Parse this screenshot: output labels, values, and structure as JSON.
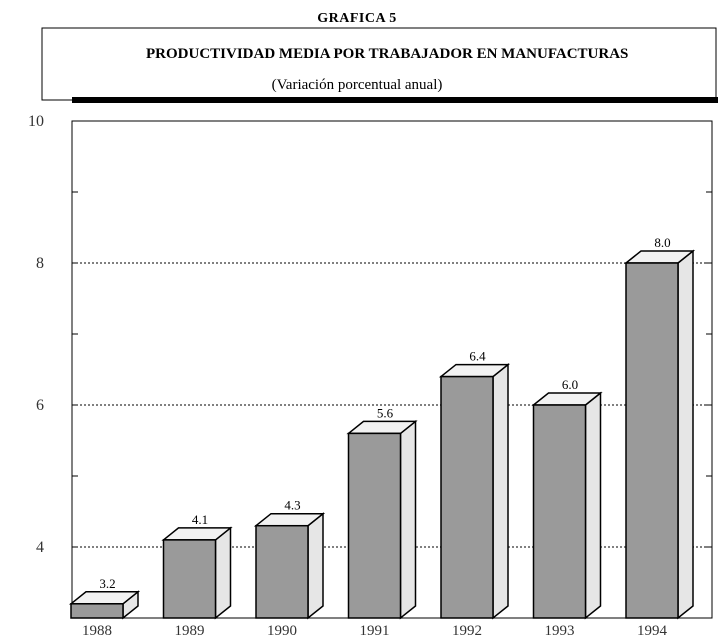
{
  "chart_data": {
    "type": "bar",
    "supertitle": "GRAFICA 5",
    "title": "PRODUCTIVIDAD MEDIA POR TRABAJADOR EN MANUFACTURAS",
    "subtitle": "(Variación porcentual anual)",
    "categories": [
      "1988",
      "1989",
      "1990",
      "1991",
      "1992",
      "1993",
      "1994"
    ],
    "values": [
      3.2,
      4.1,
      4.3,
      5.6,
      6.4,
      6.0,
      8.0
    ],
    "value_labels": [
      "3.2",
      "4.1",
      "4.3",
      "5.6",
      "6.4",
      "6.0",
      "8.0"
    ],
    "yticks": [
      4,
      6,
      8,
      10
    ],
    "ytick_labels": [
      "4",
      "6",
      "8",
      "10"
    ],
    "ylim": [
      3,
      10
    ],
    "grid": "dotted-horizontal",
    "colors": {
      "bar_front": "#9a9a9a",
      "bar_side": "#e6e6e6",
      "bar_top": "#f2f2f2",
      "grid": "#000000"
    }
  }
}
